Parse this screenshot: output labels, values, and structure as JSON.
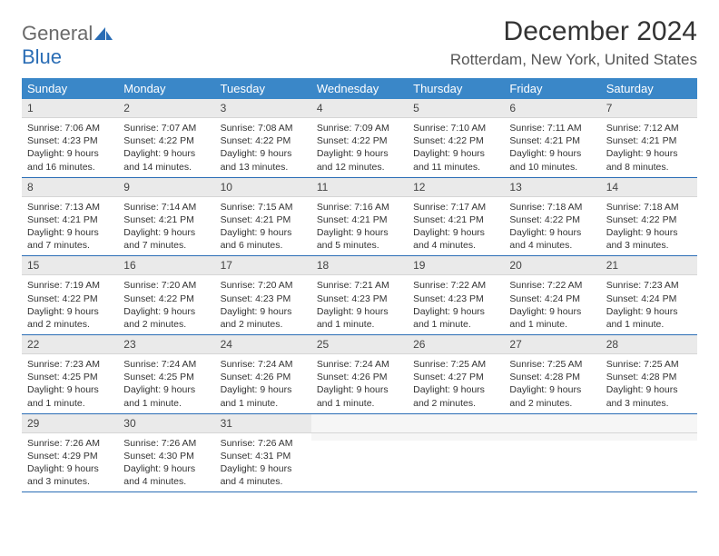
{
  "logo": {
    "part1": "General",
    "part2": "Blue"
  },
  "title": "December 2024",
  "location": "Rotterdam, New York, United States",
  "colors": {
    "header_bg": "#3a87c8",
    "accent": "#2a6db5",
    "logo_gray": "#6a6a6a"
  },
  "weekdays": [
    "Sunday",
    "Monday",
    "Tuesday",
    "Wednesday",
    "Thursday",
    "Friday",
    "Saturday"
  ],
  "weeks": [
    [
      {
        "n": "1",
        "sr": "Sunrise: 7:06 AM",
        "ss": "Sunset: 4:23 PM",
        "dl": "Daylight: 9 hours and 16 minutes."
      },
      {
        "n": "2",
        "sr": "Sunrise: 7:07 AM",
        "ss": "Sunset: 4:22 PM",
        "dl": "Daylight: 9 hours and 14 minutes."
      },
      {
        "n": "3",
        "sr": "Sunrise: 7:08 AM",
        "ss": "Sunset: 4:22 PM",
        "dl": "Daylight: 9 hours and 13 minutes."
      },
      {
        "n": "4",
        "sr": "Sunrise: 7:09 AM",
        "ss": "Sunset: 4:22 PM",
        "dl": "Daylight: 9 hours and 12 minutes."
      },
      {
        "n": "5",
        "sr": "Sunrise: 7:10 AM",
        "ss": "Sunset: 4:22 PM",
        "dl": "Daylight: 9 hours and 11 minutes."
      },
      {
        "n": "6",
        "sr": "Sunrise: 7:11 AM",
        "ss": "Sunset: 4:21 PM",
        "dl": "Daylight: 9 hours and 10 minutes."
      },
      {
        "n": "7",
        "sr": "Sunrise: 7:12 AM",
        "ss": "Sunset: 4:21 PM",
        "dl": "Daylight: 9 hours and 8 minutes."
      }
    ],
    [
      {
        "n": "8",
        "sr": "Sunrise: 7:13 AM",
        "ss": "Sunset: 4:21 PM",
        "dl": "Daylight: 9 hours and 7 minutes."
      },
      {
        "n": "9",
        "sr": "Sunrise: 7:14 AM",
        "ss": "Sunset: 4:21 PM",
        "dl": "Daylight: 9 hours and 7 minutes."
      },
      {
        "n": "10",
        "sr": "Sunrise: 7:15 AM",
        "ss": "Sunset: 4:21 PM",
        "dl": "Daylight: 9 hours and 6 minutes."
      },
      {
        "n": "11",
        "sr": "Sunrise: 7:16 AM",
        "ss": "Sunset: 4:21 PM",
        "dl": "Daylight: 9 hours and 5 minutes."
      },
      {
        "n": "12",
        "sr": "Sunrise: 7:17 AM",
        "ss": "Sunset: 4:21 PM",
        "dl": "Daylight: 9 hours and 4 minutes."
      },
      {
        "n": "13",
        "sr": "Sunrise: 7:18 AM",
        "ss": "Sunset: 4:22 PM",
        "dl": "Daylight: 9 hours and 4 minutes."
      },
      {
        "n": "14",
        "sr": "Sunrise: 7:18 AM",
        "ss": "Sunset: 4:22 PM",
        "dl": "Daylight: 9 hours and 3 minutes."
      }
    ],
    [
      {
        "n": "15",
        "sr": "Sunrise: 7:19 AM",
        "ss": "Sunset: 4:22 PM",
        "dl": "Daylight: 9 hours and 2 minutes."
      },
      {
        "n": "16",
        "sr": "Sunrise: 7:20 AM",
        "ss": "Sunset: 4:22 PM",
        "dl": "Daylight: 9 hours and 2 minutes."
      },
      {
        "n": "17",
        "sr": "Sunrise: 7:20 AM",
        "ss": "Sunset: 4:23 PM",
        "dl": "Daylight: 9 hours and 2 minutes."
      },
      {
        "n": "18",
        "sr": "Sunrise: 7:21 AM",
        "ss": "Sunset: 4:23 PM",
        "dl": "Daylight: 9 hours and 1 minute."
      },
      {
        "n": "19",
        "sr": "Sunrise: 7:22 AM",
        "ss": "Sunset: 4:23 PM",
        "dl": "Daylight: 9 hours and 1 minute."
      },
      {
        "n": "20",
        "sr": "Sunrise: 7:22 AM",
        "ss": "Sunset: 4:24 PM",
        "dl": "Daylight: 9 hours and 1 minute."
      },
      {
        "n": "21",
        "sr": "Sunrise: 7:23 AM",
        "ss": "Sunset: 4:24 PM",
        "dl": "Daylight: 9 hours and 1 minute."
      }
    ],
    [
      {
        "n": "22",
        "sr": "Sunrise: 7:23 AM",
        "ss": "Sunset: 4:25 PM",
        "dl": "Daylight: 9 hours and 1 minute."
      },
      {
        "n": "23",
        "sr": "Sunrise: 7:24 AM",
        "ss": "Sunset: 4:25 PM",
        "dl": "Daylight: 9 hours and 1 minute."
      },
      {
        "n": "24",
        "sr": "Sunrise: 7:24 AM",
        "ss": "Sunset: 4:26 PM",
        "dl": "Daylight: 9 hours and 1 minute."
      },
      {
        "n": "25",
        "sr": "Sunrise: 7:24 AM",
        "ss": "Sunset: 4:26 PM",
        "dl": "Daylight: 9 hours and 1 minute."
      },
      {
        "n": "26",
        "sr": "Sunrise: 7:25 AM",
        "ss": "Sunset: 4:27 PM",
        "dl": "Daylight: 9 hours and 2 minutes."
      },
      {
        "n": "27",
        "sr": "Sunrise: 7:25 AM",
        "ss": "Sunset: 4:28 PM",
        "dl": "Daylight: 9 hours and 2 minutes."
      },
      {
        "n": "28",
        "sr": "Sunrise: 7:25 AM",
        "ss": "Sunset: 4:28 PM",
        "dl": "Daylight: 9 hours and 3 minutes."
      }
    ],
    [
      {
        "n": "29",
        "sr": "Sunrise: 7:26 AM",
        "ss": "Sunset: 4:29 PM",
        "dl": "Daylight: 9 hours and 3 minutes."
      },
      {
        "n": "30",
        "sr": "Sunrise: 7:26 AM",
        "ss": "Sunset: 4:30 PM",
        "dl": "Daylight: 9 hours and 4 minutes."
      },
      {
        "n": "31",
        "sr": "Sunrise: 7:26 AM",
        "ss": "Sunset: 4:31 PM",
        "dl": "Daylight: 9 hours and 4 minutes."
      },
      {
        "empty": true
      },
      {
        "empty": true
      },
      {
        "empty": true
      },
      {
        "empty": true
      }
    ]
  ]
}
